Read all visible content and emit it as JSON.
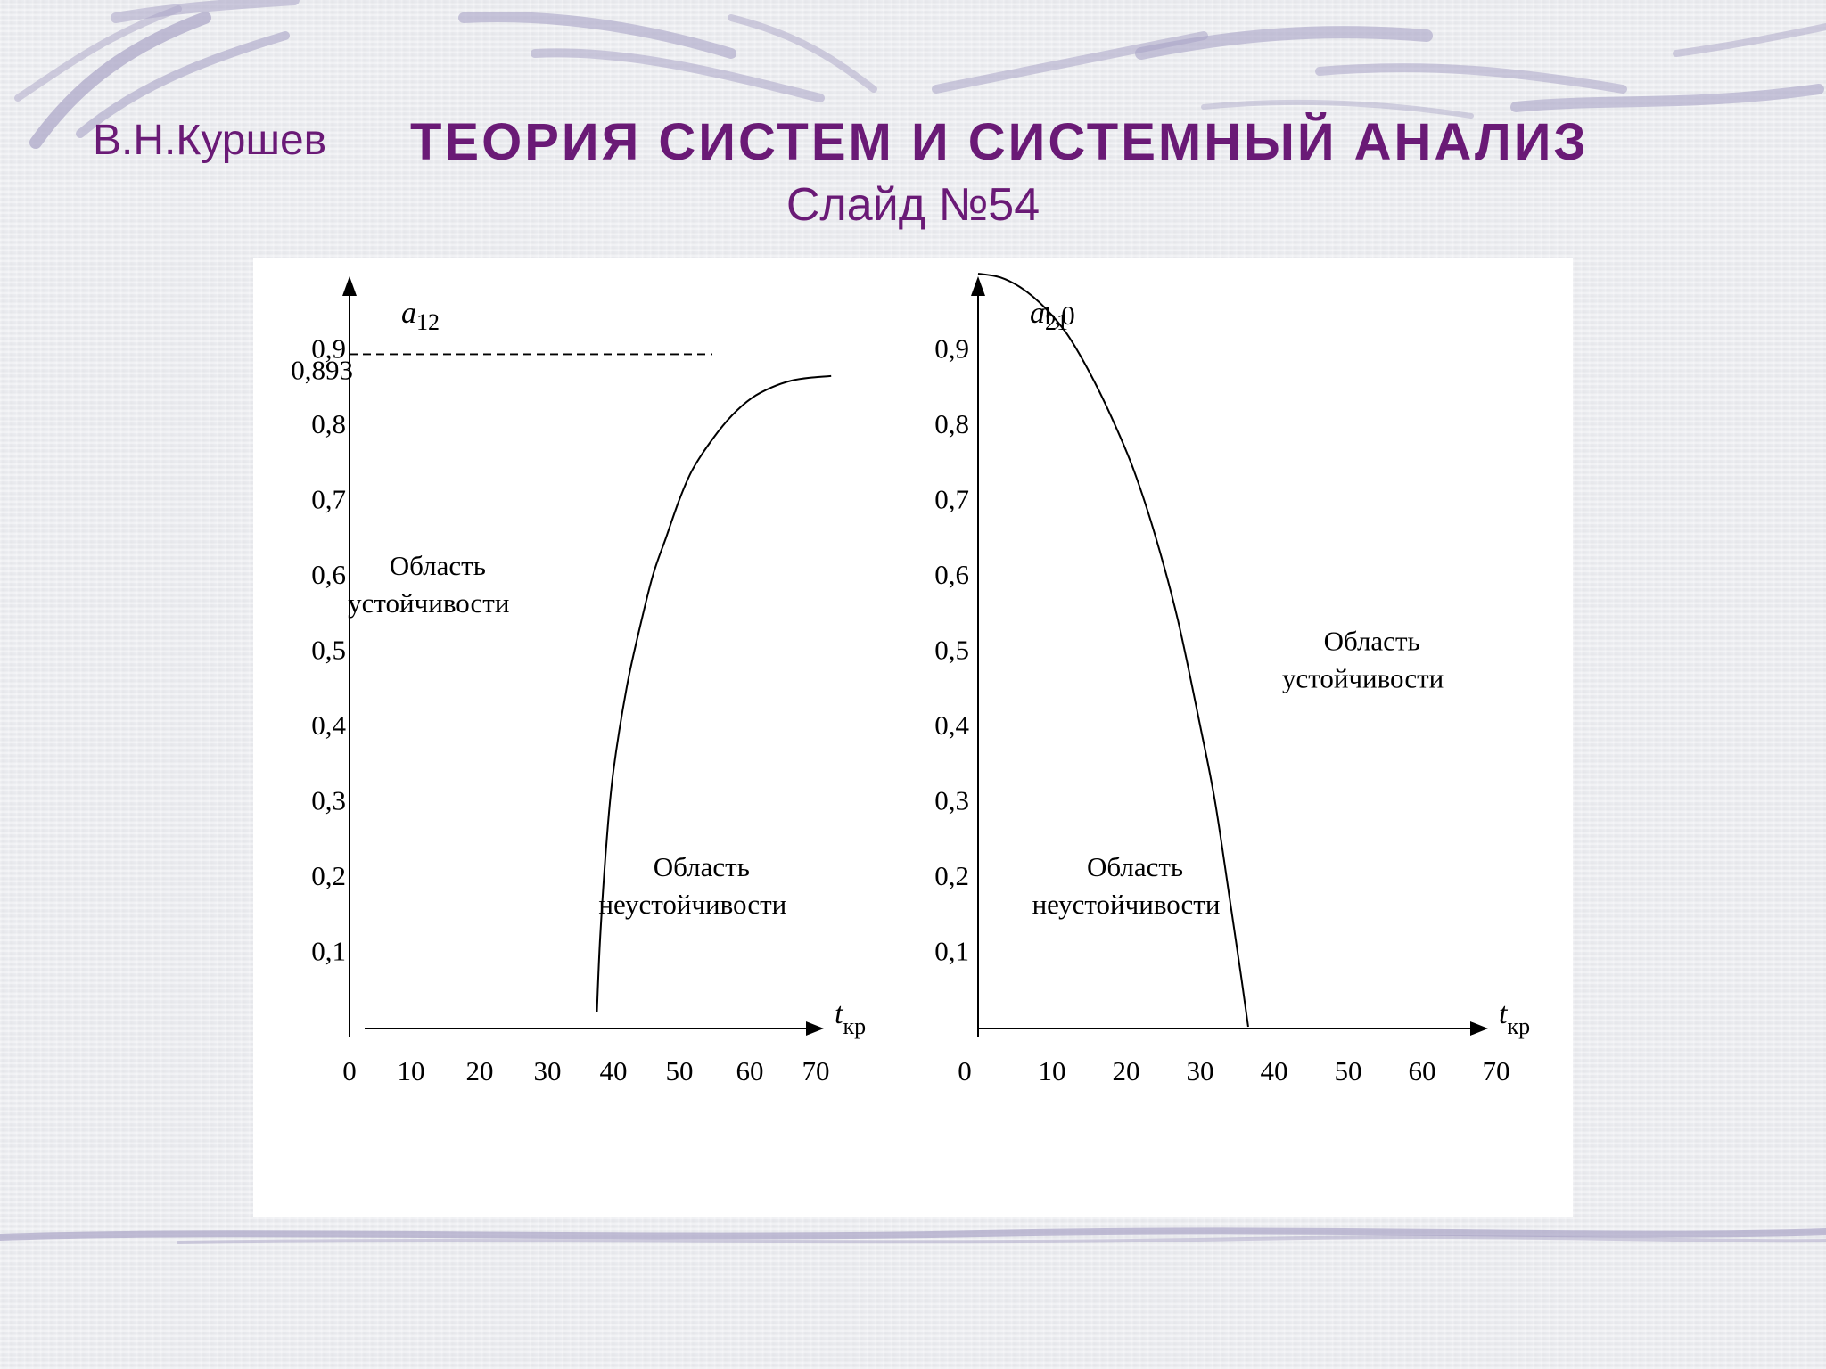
{
  "header": {
    "author": "В.Н.Куршев",
    "title": "ТЕОРИЯ СИСТЕМ И СИСТЕМНЫЙ АНАЛИЗ",
    "slide": "Слайд №54"
  },
  "colors": {
    "accent": "#6a1a76",
    "decor": "#a9a4c6"
  },
  "chart_data": [
    {
      "type": "line",
      "ylabel": "a",
      "ylabel_sub": "12",
      "xlabel": "t",
      "xlabel_sub": "кр",
      "xlim": [
        0,
        75
      ],
      "ylim": [
        0,
        1.0
      ],
      "x_ticks": [
        "0",
        "10",
        "20",
        "30",
        "40",
        "50",
        "60",
        "70"
      ],
      "y_ticks": [
        "0,1",
        "0,2",
        "0,3",
        "0,4",
        "0,5",
        "0,6",
        "0,7",
        "0,8",
        "0,9"
      ],
      "y_ticks_values": [
        0.1,
        0.2,
        0.3,
        0.4,
        0.5,
        0.6,
        0.7,
        0.8,
        0.9
      ],
      "reference_line": {
        "value": 0.893,
        "label": "0,893"
      },
      "series": [
        {
          "x": [
            37.5,
            38,
            39,
            40,
            42,
            44,
            46,
            48,
            50,
            52,
            55,
            58,
            61,
            64,
            67,
            70,
            73
          ],
          "y": [
            0.02,
            0.12,
            0.25,
            0.34,
            0.45,
            0.53,
            0.6,
            0.65,
            0.7,
            0.74,
            0.78,
            0.812,
            0.835,
            0.849,
            0.858,
            0.862,
            0.864
          ]
        }
      ],
      "annotations": [
        {
          "lines": [
            "Область",
            "устойчивости"
          ],
          "x": 12,
          "y": 0.6
        },
        {
          "lines": [
            "Область",
            "неустойчивости"
          ],
          "x": 52,
          "y": 0.2
        }
      ]
    },
    {
      "type": "line",
      "ylabel": "a",
      "ylabel_sub": "21",
      "xlabel": "t",
      "xlabel_sub": "кр",
      "xlim": [
        0,
        75
      ],
      "ylim": [
        0,
        1.0
      ],
      "x_ticks": [
        "0",
        "10",
        "20",
        "30",
        "40",
        "50",
        "60",
        "70"
      ],
      "y_ticks": [
        "0,1",
        "0,2",
        "0,3",
        "0,4",
        "0,5",
        "0,6",
        "0,7",
        "0,8",
        "0,9"
      ],
      "y_ticks_values": [
        0.1,
        0.2,
        0.3,
        0.4,
        0.5,
        0.6,
        0.7,
        0.8,
        0.9
      ],
      "top_label": "1,0",
      "series": [
        {
          "x": [
            0,
            3,
            6,
            9,
            12,
            15,
            18,
            21,
            24,
            27,
            30,
            32,
            34,
            35.5,
            36.5
          ],
          "y": [
            1.0,
            0.995,
            0.98,
            0.955,
            0.92,
            0.87,
            0.81,
            0.74,
            0.65,
            0.54,
            0.4,
            0.3,
            0.17,
            0.07,
            0.0
          ]
        }
      ],
      "annotations": [
        {
          "lines": [
            "Область",
            "устойчивости"
          ],
          "x": 52,
          "y": 0.5
        },
        {
          "lines": [
            "Область",
            "неустойчивости"
          ],
          "x": 20,
          "y": 0.2
        }
      ]
    }
  ]
}
